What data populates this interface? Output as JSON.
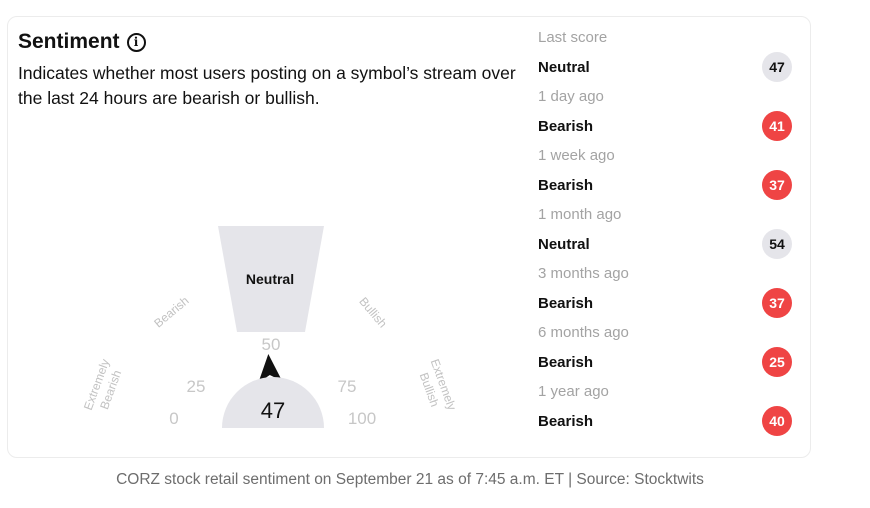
{
  "widget": {
    "title": "Sentiment",
    "info_icon": "info-circle-icon",
    "description": "Indicates whether most users posting on a symbol’s stream over the last 24 hours are bearish or bullish."
  },
  "gauge": {
    "score": "47",
    "score_value": 47,
    "active_zone": "Neutral",
    "zone_labels": {
      "extremely_bearish": [
        "Extremely",
        "Bearish"
      ],
      "bearish": "Bearish",
      "bullish": "Bullish",
      "extremely_bullish": [
        "Extremely",
        "Bullish"
      ]
    },
    "ticks": {
      "t0": "0",
      "t25": "25",
      "t50": "50",
      "t75": "75",
      "t100": "100"
    }
  },
  "history": [
    {
      "period": "Last score",
      "label": "Neutral",
      "score": "47",
      "color": "#e5e5ea",
      "text_color": "#111111"
    },
    {
      "period": "1 day ago",
      "label": "Bearish",
      "score": "41",
      "color": "#ef4444",
      "text_color": "#ffffff"
    },
    {
      "period": "1 week ago",
      "label": "Bearish",
      "score": "37",
      "color": "#ef4444",
      "text_color": "#ffffff"
    },
    {
      "period": "1 month ago",
      "label": "Neutral",
      "score": "54",
      "color": "#e5e5ea",
      "text_color": "#111111"
    },
    {
      "period": "3 months ago",
      "label": "Bearish",
      "score": "37",
      "color": "#ef4444",
      "text_color": "#ffffff"
    },
    {
      "period": "6 months ago",
      "label": "Bearish",
      "score": "25",
      "color": "#ef4444",
      "text_color": "#ffffff"
    },
    {
      "period": "1 year ago",
      "label": "Bearish",
      "score": "40",
      "color": "#ef4444",
      "text_color": "#ffffff"
    }
  ],
  "caption": "CORZ stock retail sentiment on September 21 as of 7:45 a.m. ET | Source: Stocktwits"
}
